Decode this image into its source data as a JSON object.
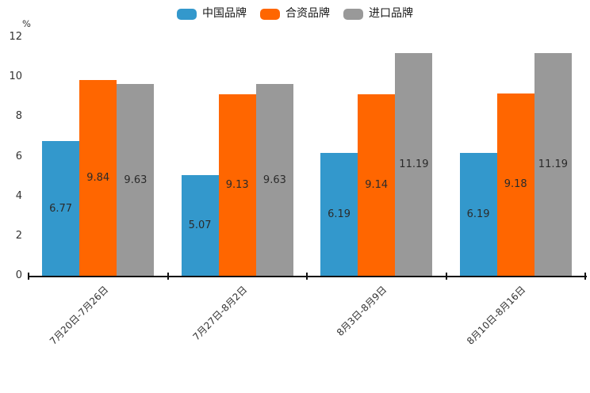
{
  "chart_data": {
    "type": "bar",
    "title": "",
    "ylabel": "%",
    "xlabel": "",
    "ylim": [
      0,
      12
    ],
    "yticks": [
      0,
      2,
      4,
      6,
      8,
      10,
      12
    ],
    "grid": false,
    "legend_position": "top",
    "value_labels": true,
    "categories": [
      "7月20日-7月26日",
      "7月27日-8月2日",
      "8月3日-8月9日",
      "8月10日-8月16日"
    ],
    "series": [
      {
        "name": "中国品牌",
        "color": "#3398CC",
        "values": [
          6.77,
          5.07,
          6.19,
          6.19
        ]
      },
      {
        "name": "合资品牌",
        "color": "#FF6600",
        "values": [
          9.84,
          9.13,
          9.14,
          9.18
        ]
      },
      {
        "name": "进口品牌",
        "color": "#999999",
        "values": [
          9.63,
          9.63,
          11.19,
          11.19
        ]
      }
    ],
    "axis_color": "#111111",
    "text_color": "#333333"
  }
}
